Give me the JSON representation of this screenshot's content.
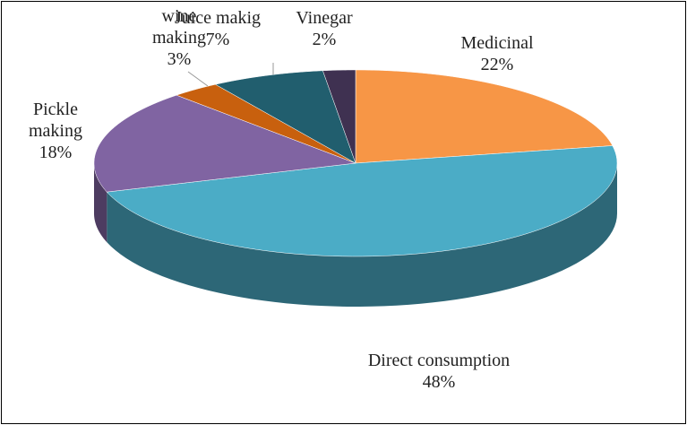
{
  "chart_data": {
    "type": "pie",
    "categories": [
      "Medicinal",
      "Direct consumption",
      "Pickle making",
      "wine making",
      "Juice makig",
      "Vinegar"
    ],
    "values": [
      22,
      48,
      18,
      3,
      7,
      2
    ],
    "value_labels": [
      "22%",
      "48%",
      "18%",
      "3%",
      "7%",
      "2%"
    ],
    "colors": [
      "#f79646",
      "#4bacc6",
      "#8064a2",
      "#c8600e",
      "#215e6e",
      "#3f3151"
    ]
  }
}
